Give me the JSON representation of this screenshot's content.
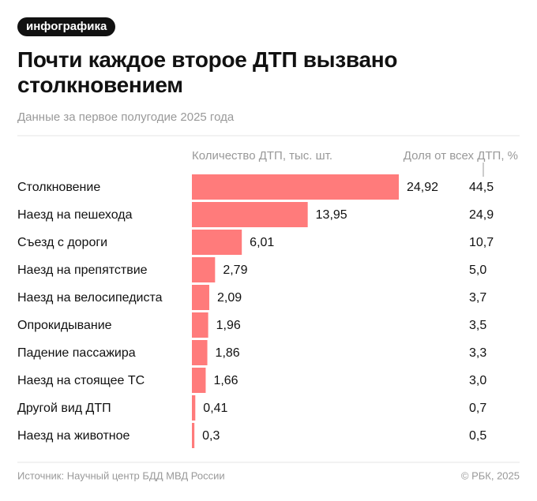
{
  "chart_data": {
    "type": "bar",
    "badge": "инфографика",
    "title": "Почти каждое второе ДТП вызвано столкновением",
    "subtitle": "Данные за первое полугодие 2025 года",
    "value_header": "Количество ДТП, тыс. шт.",
    "share_header": "Доля от всех ДТП, %",
    "categories": [
      "Столкновение",
      "Наезд на пешехода",
      "Съезд с дороги",
      "Наезд на препятствие",
      "Наезд на велосипедиста",
      "Опрокидывание",
      "Падение пассажира",
      "Наезд на стоящее ТС",
      "Другой вид ДТП",
      "Наезд на животное"
    ],
    "values": [
      24.92,
      13.95,
      6.01,
      2.79,
      2.09,
      1.96,
      1.86,
      1.66,
      0.41,
      0.3
    ],
    "value_labels": [
      "24,92",
      "13,95",
      "6,01",
      "2,79",
      "2,09",
      "1,96",
      "1,86",
      "1,66",
      "0,41",
      "0,3"
    ],
    "shares": [
      44.5,
      24.9,
      10.7,
      5.0,
      3.7,
      3.5,
      3.3,
      3.0,
      0.7,
      0.5
    ],
    "share_labels": [
      "44,5",
      "24,9",
      "10,7",
      "5,0",
      "3,7",
      "3,5",
      "3,3",
      "3,0",
      "0,7",
      "0,5"
    ],
    "color": "#ff7b7b",
    "source": "Источник: Научный центр БДД МВД России",
    "copyright": "© РБК, 2025"
  }
}
